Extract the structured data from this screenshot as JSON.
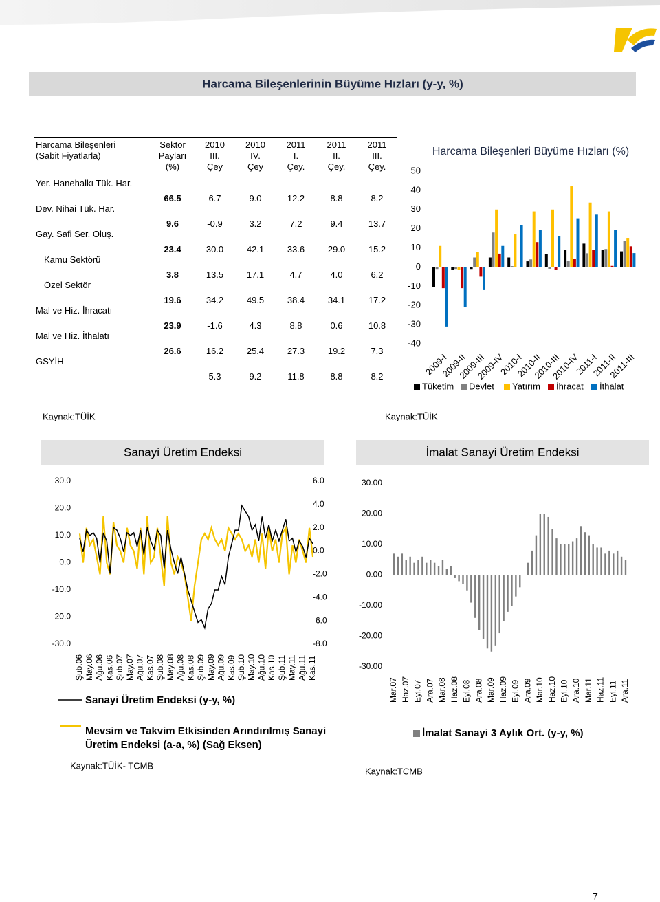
{
  "section_title": "Harcama Bileşenlerinin Büyüme Hızları (y-y, %)",
  "table": {
    "columns": [
      "Harcama Bileşenleri\n(Sabit Fiyatlarla)",
      "Sektör\nPayları\n(%)",
      "2010\nIII.\nÇey",
      "2010\nIV.\nÇey",
      "2011\nI.\nÇey.",
      "2011\nII.\nÇey.",
      "2011\nIII.\nÇey."
    ],
    "rows": [
      {
        "label": "Yer. Hanehalkı Tük. Har.",
        "share": "66.5",
        "values": [
          "6.7",
          "9.0",
          "12.2",
          "8.8",
          "8.2"
        ]
      },
      {
        "label": "Dev. Nihai Tük. Har.",
        "share": "9.6",
        "values": [
          "-0.9",
          "3.2",
          "7.2",
          "9.4",
          "13.7"
        ]
      },
      {
        "label": "Gay. Safi Ser. Oluş.",
        "share": "23.4",
        "values": [
          "30.0",
          "42.1",
          "33.6",
          "29.0",
          "15.2"
        ]
      },
      {
        "label": "Kamu Sektörü",
        "share": "3.8",
        "values": [
          "13.5",
          "17.1",
          "4.7",
          "4.0",
          "6.2"
        ]
      },
      {
        "label": "Özel Sektör",
        "share": "19.6",
        "values": [
          "34.2",
          "49.5",
          "38.4",
          "34.1",
          "17.2"
        ]
      },
      {
        "label": "Mal ve Hiz. İhracatı",
        "share": "23.9",
        "values": [
          "-1.6",
          "4.3",
          "8.8",
          "0.6",
          "10.8"
        ]
      },
      {
        "label": "Mal ve Hiz. İthalatı",
        "share": "26.6",
        "values": [
          "16.2",
          "25.4",
          "27.3",
          "19.2",
          "7.3"
        ]
      },
      {
        "label": "GSYİH",
        "values": [
          "5.3",
          "9.2",
          "11.8",
          "8.8",
          "8.2"
        ]
      }
    ],
    "source": "Kaynak:TÜİK"
  },
  "chart_data": [
    {
      "type": "bar",
      "title": "Harcama Bileşenleri  Büyüme Hızları (%)",
      "source": "Kaynak:TÜİK",
      "categories": [
        "2009-I",
        "2009-II",
        "2009-III",
        "2009-IV",
        "2010-I",
        "2010-II",
        "2010-III",
        "2010-IV",
        "2011-I",
        "2011-II",
        "2011-III"
      ],
      "series": [
        {
          "name": "Tüketim",
          "color": "#000000",
          "values": [
            -10.5,
            -1.5,
            -1,
            5,
            5,
            3,
            6.7,
            9.0,
            12.2,
            8.8,
            8.2
          ]
        },
        {
          "name": "Devlet",
          "color": "#808080",
          "values": [
            -1,
            -1,
            5,
            18,
            0.5,
            4,
            -0.9,
            3.2,
            7.2,
            9.4,
            13.7
          ]
        },
        {
          "name": "Yatırım",
          "color": "#ffc000",
          "values": [
            11,
            -1.5,
            8,
            30,
            17,
            29,
            30.0,
            42.1,
            33.6,
            29.0,
            15.2
          ]
        },
        {
          "name": "İhracat",
          "color": "#c00000",
          "values": [
            -11,
            -11,
            -5,
            7,
            0,
            13,
            -1.6,
            4.3,
            8.8,
            0.6,
            10.8
          ]
        },
        {
          "name": "İthalat",
          "color": "#0070c0",
          "values": [
            -31,
            -21,
            -12,
            11,
            22,
            19.5,
            16.2,
            25.4,
            27.3,
            19.2,
            7.3
          ]
        }
      ],
      "ylim": [
        -40,
        50
      ],
      "yticks": [
        -40,
        -30,
        -20,
        -10,
        0,
        10,
        20,
        30,
        40,
        50
      ],
      "legend": "bottom"
    },
    {
      "type": "line",
      "title": "Sanayi Üretim Endeksi",
      "source": "Kaynak:TÜİK- TCMB",
      "categories": [
        "Şub.06",
        null,
        null,
        "May.06",
        null,
        null,
        "Ağu.06",
        null,
        null,
        "Kas.06",
        null,
        null,
        "Şub.07",
        null,
        null,
        "May.07",
        null,
        null,
        "Ağu.07",
        null,
        null,
        "Kas.07",
        null,
        null,
        "Şub.08",
        null,
        null,
        "May.08",
        null,
        null,
        "Ağu.08",
        null,
        null,
        "Kas.08",
        null,
        null,
        "Şub.09",
        null,
        null,
        "May.09",
        null,
        null,
        "Ağu.09",
        null,
        null,
        "Kas.09",
        null,
        null,
        "Şub.10",
        null,
        null,
        "May.10",
        null,
        null,
        "Ağu.10",
        null,
        null,
        "Kas.10",
        null,
        null,
        "Şub.11",
        null,
        null,
        "May.11",
        null,
        null,
        "Ağu.11",
        null,
        null,
        "Kas.11"
      ],
      "series": [
        {
          "name": "Sanayi Üretim Endeksi (y-y, %)",
          "color": "#000000",
          "values": [
            9,
            4,
            12,
            10,
            11,
            9,
            0,
            11,
            8,
            -4,
            13,
            12,
            9,
            4,
            11,
            10,
            11,
            6,
            12,
            3,
            13,
            8,
            5,
            12,
            10,
            -2,
            12,
            5,
            0,
            -4,
            2,
            -4,
            -10,
            -14,
            -18,
            -22,
            -21,
            -24,
            -17,
            -15,
            -10,
            -10,
            -5,
            -8,
            2,
            7,
            12,
            12,
            21,
            19,
            17,
            12,
            14,
            8,
            17,
            9,
            14,
            8,
            12,
            8,
            12,
            16,
            8,
            9,
            4,
            8,
            6,
            2,
            9,
            7
          ]
        },
        {
          "name": "Mevsim ve Takvim Etkisinden Arındırılmış Sanayi Üretim Endeksi (a-a, %) (Sağ Eksen)",
          "color": "#f5c400",
          "axis": "y2",
          "values": [
            1.5,
            -1,
            2,
            0.5,
            1,
            -0.5,
            -2,
            3,
            -1,
            -2,
            2.5,
            0.5,
            0,
            -1,
            2,
            0.5,
            0,
            -1.5,
            2,
            -2,
            3,
            -1,
            -0.5,
            2,
            -0.5,
            -3,
            3,
            -1,
            -2,
            -0.5,
            -1,
            -2,
            -4,
            -6,
            -3,
            -1,
            1,
            1.5,
            1,
            2,
            1,
            0.5,
            1,
            0,
            2,
            1.5,
            1,
            1.5,
            1,
            0,
            0.5,
            -0.5,
            1,
            -1,
            1.5,
            -1.5,
            2,
            0,
            1,
            -1,
            1.5,
            2,
            -2,
            0.5,
            -1,
            1,
            0,
            -1,
            2,
            -0.5
          ]
        }
      ],
      "ylim": [
        -30,
        30
      ],
      "yticks": [
        {
          "value": -30,
          "label": "-30.0"
        },
        {
          "value": -20,
          "label": "-20.0"
        },
        {
          "value": -10,
          "label": "-10.0"
        },
        {
          "value": 0,
          "label": "0.0"
        },
        {
          "value": 10,
          "label": "10.0"
        },
        {
          "value": 20,
          "label": "20.0"
        },
        {
          "value": 30,
          "label": "30.0"
        }
      ],
      "y2lim": [
        -8,
        6
      ],
      "y2ticks": [
        {
          "value": -8,
          "label": "-8.0"
        },
        {
          "value": -6,
          "label": "-6.0"
        },
        {
          "value": -4,
          "label": "-4.0"
        },
        {
          "value": -2,
          "label": "-2.0"
        },
        {
          "value": 0,
          "label": "0.0"
        },
        {
          "value": 2,
          "label": "2.0"
        },
        {
          "value": 4,
          "label": "4.0"
        },
        {
          "value": 6,
          "label": "6.0"
        }
      ],
      "legend": "bottom"
    },
    {
      "type": "bar",
      "title": "İmalat Sanayi Üretim Endeksi",
      "source": "Kaynak:TCMB",
      "categories": [
        "Mar.07",
        null,
        null,
        "Haz.07",
        null,
        null,
        "Eyl.07",
        null,
        null,
        "Ara.07",
        null,
        null,
        "Mar.08",
        null,
        null,
        "Haz.08",
        null,
        null,
        "Eyl.08",
        null,
        null,
        "Ara.08",
        null,
        null,
        "Mar.09",
        null,
        null,
        "Haz.09",
        null,
        null,
        "Eyl.09",
        null,
        null,
        "Ara.09",
        null,
        null,
        "Mar.10",
        null,
        null,
        "Haz.10",
        null,
        null,
        "Eyl.10",
        null,
        null,
        "Ara.10",
        null,
        null,
        "Mar.11",
        null,
        null,
        "Haz.11",
        null,
        null,
        "Eyl.11",
        null,
        null,
        "Ara.11"
      ],
      "series": [
        {
          "name": "İmalat Sanayi 3 Aylık Ort. (y-y, %)",
          "color": "#808080",
          "values": [
            7,
            6,
            7,
            5,
            6,
            4,
            5,
            6,
            4,
            5,
            4,
            3,
            5,
            2,
            3,
            -1,
            -2,
            -3,
            -5,
            -9,
            -14,
            -18,
            -21,
            -24,
            -25,
            -23,
            -19,
            -15,
            -12,
            -10,
            -7,
            -4,
            0,
            4,
            8,
            13,
            20,
            20,
            19,
            15,
            12,
            10,
            10,
            10,
            11,
            12,
            16,
            14,
            13,
            10,
            9,
            9,
            7,
            8,
            7,
            8,
            6,
            5
          ]
        }
      ],
      "ylim": [
        -30,
        30
      ],
      "yticks": [
        {
          "value": -30,
          "label": "-30.00"
        },
        {
          "value": -20,
          "label": "-20.00"
        },
        {
          "value": -10,
          "label": "-10.00"
        },
        {
          "value": 0,
          "label": "0.00"
        },
        {
          "value": 10,
          "label": "10.00"
        },
        {
          "value": 20,
          "label": "20.00"
        },
        {
          "value": 30,
          "label": "30.00"
        }
      ],
      "legend": "bottom"
    }
  ],
  "page_number": "7"
}
